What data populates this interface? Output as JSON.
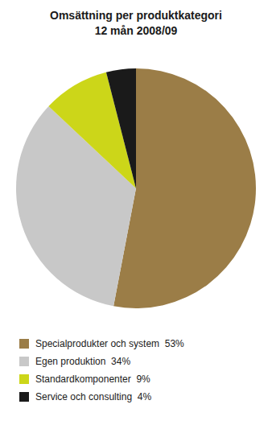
{
  "chart_data": {
    "type": "pie",
    "title": "Omsättning per produktkategori\n12 mån 2008/09",
    "categories": [
      "Specialprodukter och system  53%",
      "Egen produktion  34%",
      "Standardkomponenter  9%",
      "Service och consulting  4%"
    ],
    "values": [
      53,
      34,
      9,
      4
    ],
    "colors": [
      "#9b7d47",
      "#c8c8c8",
      "#ccd619",
      "#1a1a1a"
    ],
    "legend": "bottom"
  }
}
